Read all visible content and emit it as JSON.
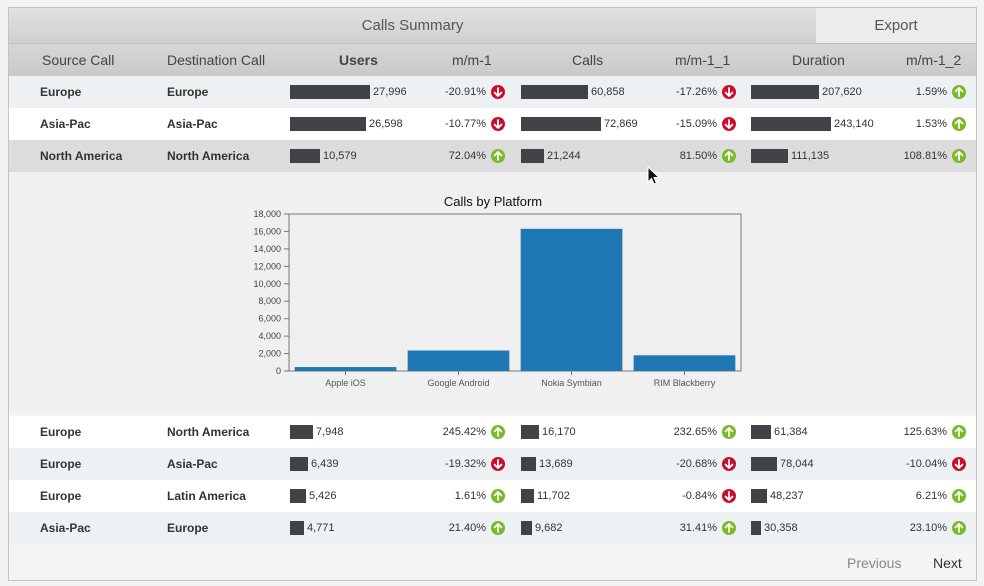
{
  "title": "Calls Summary",
  "export_label": "Export",
  "columns": [
    "Source Call",
    "Destination Call",
    "Users",
    "m/m-1",
    "Calls",
    "m/m-1_1",
    "Duration",
    "m/m-1_2"
  ],
  "rows_top": [
    {
      "src": "Europe",
      "dst": "Europe",
      "users": "27,996",
      "users_v": 27996,
      "mm1": "-20.91%",
      "mm1_dir": "down",
      "calls": "60,858",
      "calls_v": 60858,
      "mm1_1": "-17.26%",
      "mm1_1_dir": "down",
      "duration": "207,620",
      "duration_v": 207620,
      "mm1_2": "1.59%",
      "mm1_2_dir": "up"
    },
    {
      "src": "Asia-Pac",
      "dst": "Asia-Pac",
      "users": "26,598",
      "users_v": 26598,
      "mm1": "-10.77%",
      "mm1_dir": "down",
      "calls": "72,869",
      "calls_v": 72869,
      "mm1_1": "-15.09%",
      "mm1_1_dir": "down",
      "duration": "243,140",
      "duration_v": 243140,
      "mm1_2": "1.53%",
      "mm1_2_dir": "up"
    },
    {
      "src": "North America",
      "dst": "North America",
      "users": "10,579",
      "users_v": 10579,
      "mm1": "72.04%",
      "mm1_dir": "up",
      "calls": "21,244",
      "calls_v": 21244,
      "mm1_1": "81.50%",
      "mm1_1_dir": "up",
      "duration": "111,135",
      "duration_v": 111135,
      "mm1_2": "108.81%",
      "mm1_2_dir": "up"
    }
  ],
  "rows_bottom": [
    {
      "src": "Europe",
      "dst": "North America",
      "users": "7,948",
      "users_v": 7948,
      "mm1": "245.42%",
      "mm1_dir": "up",
      "calls": "16,170",
      "calls_v": 16170,
      "mm1_1": "232.65%",
      "mm1_1_dir": "up",
      "duration": "61,384",
      "duration_v": 61384,
      "mm1_2": "125.63%",
      "mm1_2_dir": "up"
    },
    {
      "src": "Europe",
      "dst": "Asia-Pac",
      "users": "6,439",
      "users_v": 6439,
      "mm1": "-19.32%",
      "mm1_dir": "down",
      "calls": "13,689",
      "calls_v": 13689,
      "mm1_1": "-20.68%",
      "mm1_1_dir": "down",
      "duration": "78,044",
      "duration_v": 78044,
      "mm1_2": "-10.04%",
      "mm1_2_dir": "down"
    },
    {
      "src": "Europe",
      "dst": "Latin America",
      "users": "5,426",
      "users_v": 5426,
      "mm1": "1.61%",
      "mm1_dir": "up",
      "calls": "11,702",
      "calls_v": 11702,
      "mm1_1": "-0.84%",
      "mm1_1_dir": "down",
      "duration": "48,237",
      "duration_v": 48237,
      "mm1_2": "6.21%",
      "mm1_2_dir": "up"
    },
    {
      "src": "Asia-Pac",
      "dst": "Europe",
      "users": "4,771",
      "users_v": 4771,
      "mm1": "21.40%",
      "mm1_dir": "up",
      "calls": "9,682",
      "calls_v": 9682,
      "mm1_1": "31.41%",
      "mm1_1_dir": "up",
      "duration": "30,358",
      "duration_v": 30358,
      "mm1_2": "23.10%",
      "mm1_2_dir": "up"
    }
  ],
  "bar_max": {
    "users": 27996,
    "calls": 72869,
    "duration": 243140
  },
  "colors": {
    "up": "#7cb929",
    "down": "#c8102e",
    "bar": "#3f4246",
    "chart_bar": "#1f77b4"
  },
  "chart_data": {
    "type": "bar",
    "title": "Calls by Platform",
    "categories": [
      "Apple iOS",
      "Google Android",
      "Nokia Symbian",
      "RIM Blackberry"
    ],
    "values": [
      450,
      2350,
      16300,
      1800
    ],
    "ylim": [
      0,
      18000
    ],
    "yticks": [
      0,
      2000,
      4000,
      6000,
      8000,
      10000,
      12000,
      14000,
      16000,
      18000
    ],
    "ytick_labels": [
      "0",
      "2,000",
      "4,000",
      "6,000",
      "8,000",
      "10,000",
      "12,000",
      "14,000",
      "16,000",
      "18,000"
    ],
    "grid": false
  },
  "pager": {
    "previous": "Previous",
    "next": "Next"
  }
}
